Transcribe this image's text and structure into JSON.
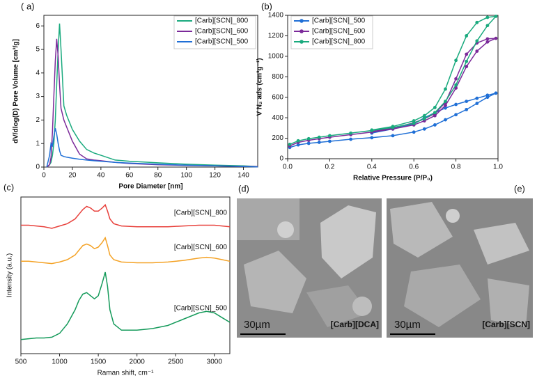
{
  "chart_data": [
    {
      "type": "line",
      "panel_label": "( a)",
      "x_label": "Pore Diameter [nm]",
      "y_label": "dV/dlog(D) Pore Volume [cm³/g]",
      "xlim": [
        0,
        150
      ],
      "xticks": [
        0,
        20,
        40,
        60,
        80,
        100,
        120,
        140
      ],
      "ylim": [
        0,
        6.45
      ],
      "yticks": [
        0,
        1,
        2,
        3,
        4,
        5,
        6
      ],
      "legend": "upper right",
      "x": [
        2,
        4,
        5,
        6,
        7,
        8,
        9,
        10,
        11,
        12,
        14,
        16,
        20,
        25,
        30,
        35,
        40,
        50,
        60,
        80,
        100,
        120,
        140,
        150
      ],
      "series": [
        {
          "name": "[Carb][SCN]_800",
          "color": "#1aaa7e",
          "values": [
            0,
            0.1,
            0.2,
            0.5,
            1.0,
            2.0,
            3.5,
            5.0,
            6.1,
            5.0,
            2.6,
            2.2,
            1.6,
            1.1,
            0.75,
            0.6,
            0.5,
            0.3,
            0.25,
            0.18,
            0.12,
            0.08,
            0.05,
            0.02
          ]
        },
        {
          "name": "[Carb][SCN]_600",
          "color": "#7b2a9a",
          "values": [
            0,
            0.1,
            0.4,
            1.5,
            3.0,
            4.5,
            5.45,
            4.7,
            3.5,
            2.5,
            2.0,
            1.7,
            1.1,
            0.55,
            0.35,
            0.3,
            0.27,
            0.2,
            0.15,
            0.1,
            0.07,
            0.05,
            0.03,
            0.02
          ]
        },
        {
          "name": "[Carb][SCN]_500",
          "color": "#1f6fd6",
          "values": [
            0,
            0.5,
            1.0,
            0.9,
            1.3,
            1.65,
            1.4,
            1.0,
            0.7,
            0.5,
            0.45,
            0.42,
            0.38,
            0.33,
            0.3,
            0.27,
            0.25,
            0.2,
            0.17,
            0.12,
            0.08,
            0.05,
            0.02,
            0.01
          ]
        }
      ]
    },
    {
      "type": "line",
      "markers": true,
      "panel_label": "(b)",
      "x_label": "Relative Pressure (P/P₀)",
      "y_label": "V N₂ ads (cm³g⁻¹)",
      "xlim": [
        0,
        1
      ],
      "xticks": [
        {
          "value": 0,
          "label": "0.0"
        },
        0.2,
        0.4,
        0.6,
        0.8,
        {
          "value": 1,
          "label": "1.0"
        }
      ],
      "ylim": [
        0,
        1400
      ],
      "yticks": [
        0,
        200,
        400,
        600,
        800,
        1000,
        1200,
        1400
      ],
      "legend": "upper left",
      "x": [
        0.01,
        0.05,
        0.1,
        0.15,
        0.2,
        0.3,
        0.4,
        0.5,
        0.6,
        0.65,
        0.7,
        0.75,
        0.8,
        0.85,
        0.9,
        0.95,
        0.99,
        0.95,
        0.9,
        0.85,
        0.8,
        0.75,
        0.7,
        0.65,
        0.6,
        0.5,
        0.4
      ],
      "series": [
        {
          "name": "[Carb][SCN]_500",
          "color": "#1f6fd6",
          "values": [
            110,
            135,
            150,
            160,
            170,
            190,
            205,
            225,
            260,
            290,
            330,
            380,
            430,
            480,
            540,
            600,
            640,
            620,
            590,
            560,
            530,
            495,
            450,
            400,
            340,
            290,
            250
          ]
        },
        {
          "name": "[Carb][SCN]_600",
          "color": "#7b2a9a",
          "values": [
            125,
            160,
            180,
            195,
            210,
            235,
            260,
            290,
            330,
            370,
            420,
            520,
            690,
            900,
            1050,
            1140,
            1175,
            1170,
            1130,
            1020,
            780,
            550,
            440,
            390,
            350,
            300,
            265
          ]
        },
        {
          "name": "[Carb][SCN]_800",
          "color": "#1aaa7e",
          "values": [
            140,
            175,
            195,
            210,
            225,
            250,
            275,
            305,
            345,
            390,
            450,
            560,
            720,
            950,
            1150,
            1300,
            1390,
            1380,
            1330,
            1200,
            960,
            680,
            500,
            420,
            370,
            315,
            280
          ]
        }
      ]
    },
    {
      "type": "line",
      "panel_label": "(c)",
      "x_label": "Raman shift, cm⁻¹",
      "y_label": "Intensity (a.u.)",
      "xlim": [
        500,
        3200
      ],
      "xticks": [
        500,
        1000,
        1500,
        2000,
        2500,
        3000
      ],
      "ylim": [
        0,
        10
      ],
      "x": [
        500,
        600,
        700,
        800,
        900,
        1000,
        1100,
        1200,
        1250,
        1300,
        1350,
        1400,
        1450,
        1500,
        1550,
        1590,
        1620,
        1650,
        1700,
        1800,
        2000,
        2200,
        2400,
        2600,
        2800,
        2900,
        3000,
        3100,
        3200
      ],
      "series": [
        {
          "name": "[Carb][SCN]_800",
          "color": "#e8413c",
          "values": [
            8.2,
            8.2,
            8.15,
            8.1,
            8.0,
            8.15,
            8.3,
            8.6,
            8.9,
            9.2,
            9.4,
            9.3,
            9.1,
            9.1,
            9.3,
            9.5,
            9.1,
            8.6,
            8.3,
            8.15,
            8.1,
            8.1,
            8.1,
            8.15,
            8.2,
            8.2,
            8.2,
            8.15,
            8.1
          ]
        },
        {
          "name": "[Carb][SCN]_600",
          "color": "#f4a225",
          "values": [
            5.9,
            5.9,
            5.85,
            5.8,
            5.75,
            5.85,
            6.0,
            6.3,
            6.6,
            6.9,
            7.0,
            6.9,
            6.7,
            6.8,
            7.1,
            7.4,
            6.9,
            6.3,
            6.0,
            5.85,
            5.8,
            5.8,
            5.85,
            5.95,
            6.1,
            6.15,
            6.1,
            6.0,
            5.9
          ]
        },
        {
          "name": "[Carb][SCN]_500",
          "color": "#149a5a",
          "values": [
            0.9,
            0.95,
            1.0,
            1.0,
            1.05,
            1.3,
            1.9,
            2.8,
            3.4,
            3.8,
            3.9,
            3.7,
            3.5,
            3.7,
            4.5,
            5.2,
            4.3,
            2.8,
            1.9,
            1.5,
            1.5,
            1.6,
            1.8,
            2.2,
            2.6,
            2.7,
            2.6,
            2.3,
            2.0
          ]
        }
      ]
    }
  ],
  "images": [
    {
      "panel_label": "(d)",
      "scale_bar": "30µm",
      "caption": "[Carb][DCA]"
    },
    {
      "panel_label": "(e)",
      "scale_bar": "30µm",
      "caption": "[Carb][SCN]"
    }
  ]
}
